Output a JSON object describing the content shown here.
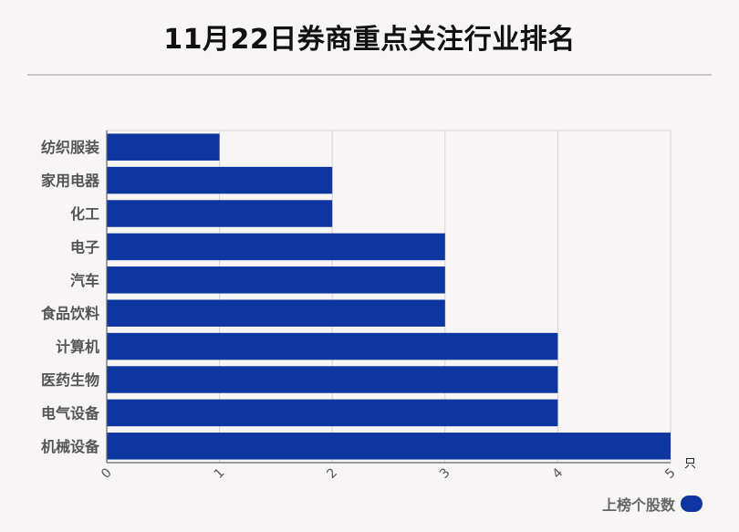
{
  "title": "11月22日券商重点关注行业排名",
  "chart_data": {
    "type": "bar",
    "orientation": "horizontal",
    "categories": [
      "纺织服装",
      "家用电器",
      "化工",
      "电子",
      "汽车",
      "食品饮料",
      "计算机",
      "医药生物",
      "电气设备",
      "机械设备"
    ],
    "series": [
      {
        "name": "上榜个股数",
        "values": [
          1,
          2,
          2,
          3,
          3,
          3,
          4,
          4,
          4,
          5
        ]
      }
    ],
    "xlim": [
      0,
      5
    ],
    "xticks": [
      "0",
      "1",
      "2",
      "3",
      "4",
      "5"
    ],
    "xunit": "只",
    "grid": true,
    "legend_position": "bottom-right",
    "colors": {
      "bar": "#0e36a0",
      "grid": "#d6d3d5",
      "axis": "#666666"
    }
  }
}
